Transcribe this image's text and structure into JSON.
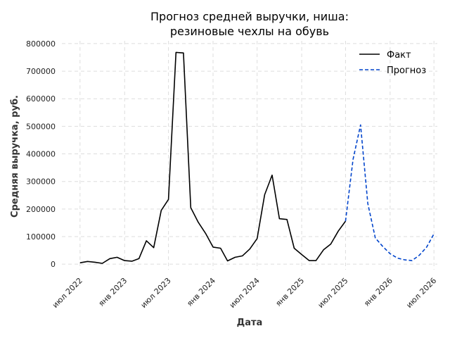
{
  "chart_data": {
    "type": "line",
    "title": [
      "Прогноз средней выручки, ниша:",
      "резиновые чехлы на обувь"
    ],
    "xlabel": "Дата",
    "ylabel": "Средняя выручка, руб.",
    "ylim": [
      -20000,
      810000
    ],
    "yticks": [
      0,
      100000,
      200000,
      300000,
      400000,
      500000,
      600000,
      700000,
      800000
    ],
    "xlim": [
      "2022-04-17",
      "2026-07-15"
    ],
    "xticks": [
      {
        "date": "2022-07-01",
        "label": "июл 2022"
      },
      {
        "date": "2023-01-01",
        "label": "янв 2023"
      },
      {
        "date": "2023-07-01",
        "label": "июл 2023"
      },
      {
        "date": "2024-01-01",
        "label": "янв 2024"
      },
      {
        "date": "2024-07-01",
        "label": "июл 2024"
      },
      {
        "date": "2025-01-01",
        "label": "янв 2025"
      },
      {
        "date": "2025-07-01",
        "label": "июл 2025"
      },
      {
        "date": "2026-01-01",
        "label": "янв 2026"
      },
      {
        "date": "2026-07-01",
        "label": "июл 2026"
      }
    ],
    "grid": true,
    "legend": "top-right",
    "series": [
      {
        "name": "Факт",
        "color": "#000000",
        "dash": "solid",
        "x": [
          "2022-07-01",
          "2022-08-01",
          "2022-09-01",
          "2022-10-01",
          "2022-11-01",
          "2022-12-01",
          "2023-01-01",
          "2023-02-01",
          "2023-03-01",
          "2023-04-01",
          "2023-05-01",
          "2023-06-01",
          "2023-07-01",
          "2023-08-01",
          "2023-09-01",
          "2023-10-01",
          "2023-11-01",
          "2023-12-01",
          "2024-01-01",
          "2024-02-01",
          "2024-03-01",
          "2024-04-01",
          "2024-05-01",
          "2024-06-01",
          "2024-07-01",
          "2024-08-01",
          "2024-09-01",
          "2024-10-01",
          "2024-11-01",
          "2024-12-01",
          "2025-01-01",
          "2025-02-01",
          "2025-03-01",
          "2025-04-01",
          "2025-05-01",
          "2025-06-01",
          "2025-07-01"
        ],
        "y": [
          5000,
          10000,
          7000,
          3000,
          20000,
          25000,
          13000,
          11000,
          20000,
          85000,
          60000,
          195000,
          235000,
          768000,
          766000,
          205000,
          152000,
          112000,
          62000,
          58000,
          12000,
          25000,
          30000,
          55000,
          93000,
          252000,
          323000,
          165000,
          162000,
          58000,
          35000,
          13000,
          13000,
          52000,
          73000,
          120000,
          156000
        ]
      },
      {
        "name": "Прогноз",
        "color": "#0044cc",
        "dash": "dashed",
        "x": [
          "2025-07-01",
          "2025-08-01",
          "2025-09-01",
          "2025-10-01",
          "2025-11-01",
          "2025-12-01",
          "2026-01-01",
          "2026-02-01",
          "2026-03-01",
          "2026-04-01",
          "2026-05-01",
          "2026-06-01",
          "2026-07-01"
        ],
        "y": [
          156000,
          380000,
          505000,
          220000,
          95000,
          65000,
          38000,
          22000,
          16000,
          13000,
          32000,
          62000,
          110000
        ]
      }
    ]
  }
}
